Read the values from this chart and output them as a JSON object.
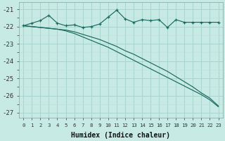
{
  "xlabel": "Humidex (Indice chaleur)",
  "x_values": [
    0,
    1,
    2,
    3,
    4,
    5,
    6,
    7,
    8,
    9,
    10,
    11,
    12,
    13,
    14,
    15,
    16,
    17,
    18,
    19,
    20,
    21,
    22,
    23
  ],
  "line_wiggly_y": [
    -21.95,
    -21.8,
    -21.65,
    -21.35,
    -21.8,
    -21.95,
    -21.9,
    -22.05,
    -22.0,
    -21.85,
    -21.45,
    -21.05,
    -21.55,
    -21.75,
    -21.6,
    -21.65,
    -21.6,
    -22.05,
    -21.6,
    -21.75,
    -21.75,
    -21.75,
    -21.75,
    -21.75
  ],
  "line_straight1_y": [
    -21.95,
    -22.0,
    -22.05,
    -22.1,
    -22.15,
    -22.2,
    -22.3,
    -22.45,
    -22.6,
    -22.75,
    -22.95,
    -23.15,
    -23.4,
    -23.6,
    -23.85,
    -24.1,
    -24.35,
    -24.6,
    -24.9,
    -25.2,
    -25.5,
    -25.85,
    -26.15,
    -26.6
  ],
  "line_straight2_y": [
    -21.95,
    -22.0,
    -22.05,
    -22.1,
    -22.15,
    -22.25,
    -22.4,
    -22.6,
    -22.8,
    -23.0,
    -23.2,
    -23.45,
    -23.7,
    -23.95,
    -24.2,
    -24.45,
    -24.7,
    -24.95,
    -25.2,
    -25.45,
    -25.7,
    -25.95,
    -26.25,
    -26.65
  ],
  "bg_color": "#c8eae4",
  "grid_major_color": "#aad4ce",
  "grid_minor_color": "#bcdeda",
  "line_color": "#1a6b60",
  "marker_color": "#1a6b60",
  "ylim": [
    -27.3,
    -20.6
  ],
  "xlim": [
    -0.5,
    23.5
  ],
  "yticks": [
    -27,
    -26,
    -25,
    -24,
    -23,
    -22,
    -21
  ],
  "xtick_labels": [
    "0",
    "1",
    "2",
    "3",
    "4",
    "5",
    "6",
    "7",
    "8",
    "9",
    "10",
    "11",
    "12",
    "13",
    "14",
    "15",
    "16",
    "17",
    "18",
    "19",
    "20",
    "21",
    "22",
    "23"
  ]
}
